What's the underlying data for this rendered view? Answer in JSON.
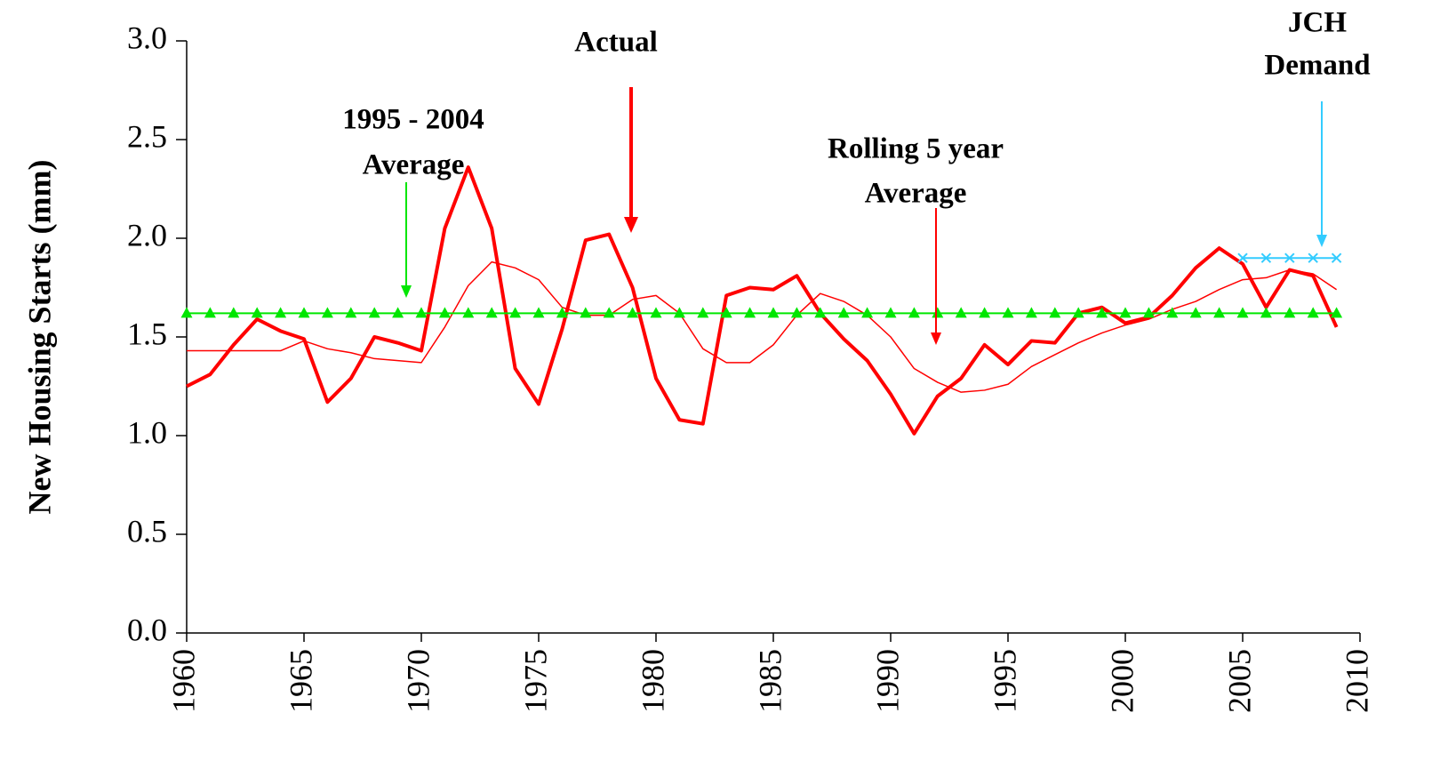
{
  "chart_data": {
    "type": "line",
    "y_label": "New Housing Starts (mm)",
    "x": [
      1960,
      1961,
      1962,
      1963,
      1964,
      1965,
      1966,
      1967,
      1968,
      1969,
      1970,
      1971,
      1972,
      1973,
      1974,
      1975,
      1976,
      1977,
      1978,
      1979,
      1980,
      1981,
      1982,
      1983,
      1984,
      1985,
      1986,
      1987,
      1988,
      1989,
      1990,
      1991,
      1992,
      1993,
      1994,
      1995,
      1996,
      1997,
      1998,
      1999,
      2000,
      2001,
      2002,
      2003,
      2004,
      2005,
      2006,
      2007,
      2008,
      2009
    ],
    "xlim": [
      1960,
      2010
    ],
    "xticks": [
      1960,
      1965,
      1970,
      1975,
      1980,
      1985,
      1990,
      1995,
      2000,
      2005,
      2010
    ],
    "ylim": [
      0,
      3
    ],
    "yticks": [
      {
        "value": 0,
        "label": "0.0"
      },
      {
        "value": 0.5,
        "label": "0.5"
      },
      {
        "value": 1,
        "label": "1.0"
      },
      {
        "value": 1.5,
        "label": "1.5"
      },
      {
        "value": 2,
        "label": "2.0"
      },
      {
        "value": 2.5,
        "label": "2.5"
      },
      {
        "value": 3,
        "label": "3.0"
      }
    ],
    "series": [
      {
        "color": "#ff0000",
        "width": 4,
        "marker": "none",
        "values": [
          1.25,
          1.31,
          1.46,
          1.59,
          1.53,
          1.49,
          1.17,
          1.29,
          1.5,
          1.47,
          1.43,
          2.05,
          2.36,
          2.05,
          1.34,
          1.16,
          1.54,
          1.99,
          2.02,
          1.75,
          1.29,
          1.08,
          1.06,
          1.71,
          1.75,
          1.74,
          1.81,
          1.62,
          1.49,
          1.38,
          1.21,
          1.01,
          1.2,
          1.29,
          1.46,
          1.36,
          1.48,
          1.47,
          1.62,
          1.65,
          1.57,
          1.6,
          1.71,
          1.85,
          1.95,
          1.87,
          1.65,
          1.84,
          1.81,
          1.55
        ]
      },
      {
        "color": "#ff0000",
        "width": 1.5,
        "marker": "none",
        "values": [
          1.43,
          1.43,
          1.43,
          1.43,
          1.43,
          1.48,
          1.44,
          1.42,
          1.39,
          1.38,
          1.37,
          1.55,
          1.76,
          1.88,
          1.85,
          1.79,
          1.65,
          1.61,
          1.61,
          1.69,
          1.71,
          1.62,
          1.44,
          1.37,
          1.37,
          1.46,
          1.61,
          1.72,
          1.68,
          1.61,
          1.5,
          1.34,
          1.27,
          1.22,
          1.23,
          1.26,
          1.35,
          1.41,
          1.47,
          1.52,
          1.56,
          1.59,
          1.64,
          1.68,
          1.74,
          1.79,
          1.8,
          1.84,
          1.82,
          1.74
        ]
      },
      {
        "color": "#00e600",
        "width": 2,
        "marker": "triangle",
        "values": [
          1.62,
          1.62,
          1.62,
          1.62,
          1.62,
          1.62,
          1.62,
          1.62,
          1.62,
          1.62,
          1.62,
          1.62,
          1.62,
          1.62,
          1.62,
          1.62,
          1.62,
          1.62,
          1.62,
          1.62,
          1.62,
          1.62,
          1.62,
          1.62,
          1.62,
          1.62,
          1.62,
          1.62,
          1.62,
          1.62,
          1.62,
          1.62,
          1.62,
          1.62,
          1.62,
          1.62,
          1.62,
          1.62,
          1.62,
          1.62,
          1.62,
          1.62,
          1.62,
          1.62,
          1.62,
          1.62,
          1.62,
          1.62,
          1.62,
          1.62
        ]
      },
      {
        "color": "#33ccff",
        "width": 2,
        "marker": "x",
        "values": [
          null,
          null,
          null,
          null,
          null,
          null,
          null,
          null,
          null,
          null,
          null,
          null,
          null,
          null,
          null,
          null,
          null,
          null,
          null,
          null,
          null,
          null,
          null,
          null,
          null,
          null,
          null,
          null,
          null,
          null,
          null,
          null,
          null,
          null,
          null,
          null,
          null,
          null,
          null,
          null,
          null,
          null,
          null,
          null,
          null,
          1.9,
          1.9,
          1.9,
          1.9,
          1.9
        ]
      }
    ],
    "annotations": [
      {
        "lines": [
          "Actual"
        ],
        "color": "#ff0000"
      },
      {
        "lines": [
          "1995 - 2004",
          "Average"
        ],
        "color": "#00e600"
      },
      {
        "lines": [
          "Rolling 5 year",
          "Average"
        ],
        "color": "#ff0000"
      },
      {
        "lines": [
          "JCH",
          "Demand"
        ],
        "color": "#33ccff"
      }
    ]
  }
}
